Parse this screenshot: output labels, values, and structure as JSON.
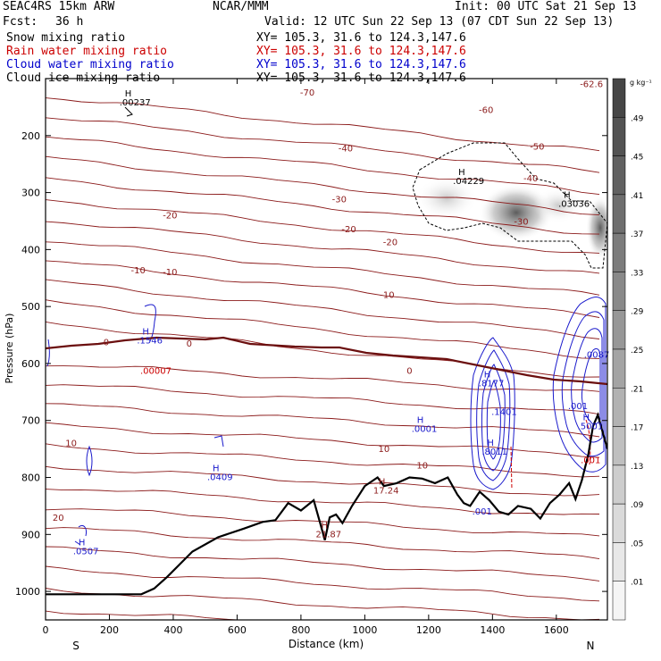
{
  "header": {
    "title": "SEAC4RS 15km ARW",
    "org": "NCAR/MMM",
    "init": "Init: 00 UTC Sat 21 Sep 13",
    "fcst_label": "Fcst:",
    "fcst_value": "36 h",
    "valid": "Valid: 12 UTC Sun 22 Sep 13 (07 CDT Sun 22 Sep 13)"
  },
  "fields": [
    {
      "name": "Snow mixing ratio",
      "xy": "XY= 105.3, 31.6 to 124.3,147.6",
      "color": "#000000"
    },
    {
      "name": "Rain water mixing ratio",
      "xy": "XY= 105.3, 31.6 to 124.3,147.6",
      "color": "#cc0000"
    },
    {
      "name": "Cloud water mixing ratio",
      "xy": "XY= 105.3, 31.6 to 124.3,147.6",
      "color": "#0000cc"
    },
    {
      "name": "Cloud ice mixing ratio",
      "xy": "XY= 105.3, 31.6 to 124.3,147.6",
      "color": "#000000"
    }
  ],
  "colorbar": {
    "unit": "g kg⁻¹",
    "ticks": [
      ".49",
      ".45",
      ".41",
      ".37",
      ".33",
      ".29",
      ".25",
      ".21",
      ".17",
      ".13",
      ".09",
      ".05",
      ".01"
    ]
  },
  "chart_data": {
    "type": "cross-section contour",
    "xlabel": "Distance (km)",
    "ylabel": "Pressure (hPa)",
    "xlim": [
      0,
      1760
    ],
    "ylim": [
      1050,
      100
    ],
    "x_ticks": [
      "0",
      "200",
      "400",
      "600",
      "800",
      "1000",
      "1200",
      "1400",
      "1600"
    ],
    "y_ticks": [
      "200",
      "300",
      "400",
      "500",
      "600",
      "700",
      "800",
      "900",
      "1000"
    ],
    "left_end": "S",
    "right_end": "N",
    "colors": {
      "temperature": "#8b1a1a",
      "cloud_water": "#1a1acc",
      "terrain": "#000000"
    },
    "temperature_contours": [
      {
        "label": "-70",
        "x": 820,
        "p": 130
      },
      {
        "label": "-62.6",
        "x": 1710,
        "p": 115
      },
      {
        "label": "-60",
        "x": 1380,
        "p": 160
      },
      {
        "label": "-50",
        "x": 1540,
        "p": 225
      },
      {
        "label": "-40",
        "x": 940,
        "p": 228
      },
      {
        "label": "-40",
        "x": 1520,
        "p": 280
      },
      {
        "label": "-30",
        "x": 920,
        "p": 317
      },
      {
        "label": "-30",
        "x": 1490,
        "p": 356
      },
      {
        "label": "-20",
        "x": 390,
        "p": 345
      },
      {
        "label": "-20",
        "x": 950,
        "p": 370
      },
      {
        "label": "-20",
        "x": 1080,
        "p": 392
      },
      {
        "label": "-10",
        "x": 290,
        "p": 442
      },
      {
        "label": "-10",
        "x": 390,
        "p": 445
      },
      {
        "label": "-10",
        "x": 1070,
        "p": 485
      },
      {
        "label": "0",
        "x": 190,
        "p": 568
      },
      {
        "label": "0",
        "x": 450,
        "p": 570
      },
      {
        "label": "0",
        "x": 1140,
        "p": 618
      },
      {
        "label": "10",
        "x": 80,
        "p": 745
      },
      {
        "label": "10",
        "x": 1060,
        "p": 755
      },
      {
        "label": "10",
        "x": 1180,
        "p": 784
      },
      {
        "label": "20",
        "x": 40,
        "p": 876
      }
    ],
    "point_annotations": [
      {
        "label": "H",
        "value": ".00237",
        "x": 265,
        "p": 147,
        "color": "#000000"
      },
      {
        "label": "H",
        "value": ".04229",
        "x": 1310,
        "p": 285,
        "color": "#000000"
      },
      {
        "label": "H",
        "value": ".03036",
        "x": 1640,
        "p": 325,
        "color": "#000000"
      },
      {
        "label": "H",
        "value": ".1546",
        "x": 320,
        "p": 565,
        "color": "#1a1acc"
      },
      {
        "label": "",
        "value": ".00007",
        "x": 330,
        "p": 618,
        "color": "#cc0000"
      },
      {
        "label": "H",
        "value": ".0001",
        "x": 1180,
        "p": 720,
        "color": "#1a1acc"
      },
      {
        "label": "H",
        "value": ".0409",
        "x": 540,
        "p": 805,
        "color": "#1a1acc"
      },
      {
        "label": "H",
        "value": ".0507",
        "x": 120,
        "p": 935,
        "color": "#1a1acc"
      },
      {
        "label": "H",
        "value": "17.24",
        "x": 1060,
        "p": 828,
        "color": "#8b1a1a"
      },
      {
        "label": "H",
        "value": "21.87",
        "x": 880,
        "p": 905,
        "color": "#8b1a1a"
      },
      {
        "label": "H",
        "value": ".8177",
        "x": 1390,
        "p": 640,
        "color": "#1a1acc"
      },
      {
        "label": "",
        "value": ".1401",
        "x": 1430,
        "p": 690,
        "color": "#1a1acc"
      },
      {
        "label": "H",
        "value": ".8011",
        "x": 1400,
        "p": 760,
        "color": "#1a1acc"
      },
      {
        "label": "",
        "value": ".001",
        "x": 1370,
        "p": 865,
        "color": "#1a1acc"
      },
      {
        "label": "",
        "value": ".0087",
        "x": 1720,
        "p": 590,
        "color": "#1a1acc"
      },
      {
        "label": "",
        "value": ".001",
        "x": 1670,
        "p": 680,
        "color": "#1a1acc"
      },
      {
        "label": "H",
        "value": ".5001",
        "x": 1700,
        "p": 715,
        "color": "#1a1acc"
      },
      {
        "label": "",
        "value": ".001",
        "x": 1710,
        "p": 775,
        "color": "#cc0000"
      }
    ],
    "terrain": [
      [
        0,
        1005
      ],
      [
        300,
        1005
      ],
      [
        340,
        995
      ],
      [
        380,
        975
      ],
      [
        460,
        930
      ],
      [
        540,
        905
      ],
      [
        620,
        890
      ],
      [
        680,
        878
      ],
      [
        720,
        875
      ],
      [
        760,
        845
      ],
      [
        800,
        858
      ],
      [
        840,
        840
      ],
      [
        860,
        880
      ],
      [
        875,
        910
      ],
      [
        890,
        870
      ],
      [
        910,
        865
      ],
      [
        930,
        880
      ],
      [
        960,
        850
      ],
      [
        1000,
        815
      ],
      [
        1040,
        800
      ],
      [
        1060,
        815
      ],
      [
        1100,
        810
      ],
      [
        1140,
        800
      ],
      [
        1180,
        802
      ],
      [
        1220,
        810
      ],
      [
        1260,
        800
      ],
      [
        1290,
        830
      ],
      [
        1310,
        845
      ],
      [
        1330,
        850
      ],
      [
        1360,
        825
      ],
      [
        1390,
        840
      ],
      [
        1420,
        860
      ],
      [
        1450,
        865
      ],
      [
        1480,
        850
      ],
      [
        1520,
        855
      ],
      [
        1550,
        872
      ],
      [
        1580,
        845
      ],
      [
        1610,
        830
      ],
      [
        1640,
        810
      ],
      [
        1660,
        838
      ],
      [
        1680,
        805
      ],
      [
        1700,
        760
      ],
      [
        1715,
        710
      ],
      [
        1730,
        690
      ],
      [
        1745,
        720
      ],
      [
        1760,
        750
      ]
    ]
  }
}
